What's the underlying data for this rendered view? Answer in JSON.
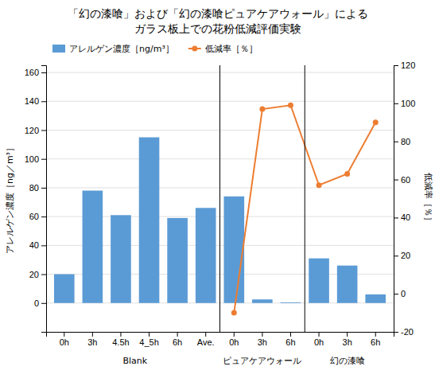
{
  "chart_data": {
    "type": "bar",
    "title": "「幻の漆喰」および「幻の漆喰ピュアケアウォール」による\nガラス板上での花粉低減評価実験",
    "categories": [
      "0h",
      "3h",
      "4.5h",
      "4_5h",
      "6h",
      "Ave.",
      "0h",
      "3h",
      "6h",
      "0h",
      "3h",
      "6h"
    ],
    "series": [
      {
        "name": "アレルゲン濃度［ng/m³］",
        "type": "bar",
        "color": "#5b9bd5",
        "values": [
          20,
          78,
          61,
          115,
          59,
          66,
          74,
          2.5,
          0.5,
          31,
          26,
          6
        ]
      },
      {
        "name": "低減率［％］",
        "type": "line",
        "axis": "y2",
        "color": "#ed7d31",
        "marker": "circle",
        "line_style": "solid",
        "values": [
          null,
          null,
          null,
          null,
          null,
          null,
          -10,
          97,
          99,
          57,
          63,
          90
        ]
      }
    ],
    "ylabel": "アレルゲン濃度［ng／m³］",
    "y2label": "低減率［％］",
    "ylim": [
      -20,
      165
    ],
    "yticks": [
      0,
      20,
      40,
      60,
      80,
      100,
      120,
      140,
      160
    ],
    "y2lim": [
      -20,
      120
    ],
    "y2ticks": [
      -20,
      0,
      20,
      40,
      60,
      80,
      100,
      120
    ],
    "annotations": [
      {
        "text": "Blank",
        "from": 0,
        "to": 5
      },
      {
        "text": "ピュアケアウォール",
        "from": 6,
        "to": 8
      },
      {
        "text": "幻の漆喰",
        "from": 9,
        "to": 11
      }
    ],
    "grid": true,
    "legend": "top-left"
  }
}
